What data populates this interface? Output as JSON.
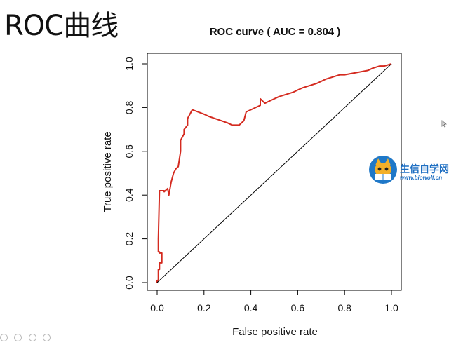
{
  "slide": {
    "title": "ROC曲线"
  },
  "chart_data": {
    "type": "line",
    "title": "ROC curve ( AUC =  0.804 )",
    "xlabel": "False positive rate",
    "ylabel": "True positive rate",
    "xlim": [
      0,
      1
    ],
    "ylim": [
      0,
      1
    ],
    "xticks": [
      "0.0",
      "0.2",
      "0.4",
      "0.6",
      "0.8",
      "1.0"
    ],
    "yticks": [
      "0.0",
      "0.2",
      "0.4",
      "0.6",
      "0.8",
      "1.0"
    ],
    "grid": false,
    "series": [
      {
        "color": "#d42a1f",
        "x": [
          0,
          0,
          0.005,
          0.005,
          0.01,
          0.01,
          0.02,
          0.02,
          0.01,
          0.01,
          0.005,
          0.005,
          0.01,
          0.03,
          0.03,
          0.045,
          0.05,
          0.06,
          0.07,
          0.08,
          0.09,
          0.1,
          0.1,
          0.115,
          0.115,
          0.13,
          0.13,
          0.15,
          0.2,
          0.22,
          0.3,
          0.32,
          0.35,
          0.37,
          0.38,
          0.4,
          0.42,
          0.44,
          0.44,
          0.46,
          0.48,
          0.5,
          0.52,
          0.55,
          0.58,
          0.6,
          0.62,
          0.65,
          0.68,
          0.7,
          0.72,
          0.75,
          0.78,
          0.8,
          0.85,
          0.9,
          0.92,
          0.95,
          0.97,
          1
        ],
        "y": [
          0,
          0.01,
          0.01,
          0.06,
          0.06,
          0.09,
          0.09,
          0.135,
          0.135,
          0.14,
          0.14,
          0.2,
          0.42,
          0.42,
          0.415,
          0.43,
          0.4,
          0.46,
          0.5,
          0.52,
          0.53,
          0.6,
          0.65,
          0.68,
          0.7,
          0.72,
          0.75,
          0.79,
          0.77,
          0.76,
          0.73,
          0.72,
          0.72,
          0.74,
          0.78,
          0.79,
          0.8,
          0.81,
          0.84,
          0.82,
          0.83,
          0.84,
          0.85,
          0.86,
          0.87,
          0.88,
          0.89,
          0.9,
          0.91,
          0.92,
          0.93,
          0.94,
          0.95,
          0.95,
          0.96,
          0.97,
          0.98,
          0.99,
          0.99,
          1
        ]
      },
      {
        "color": "#000000",
        "x": [
          0,
          1
        ],
        "y": [
          0,
          1
        ]
      }
    ]
  },
  "watermark": {
    "name": "生信自学网",
    "url": "www.biowolf.cn"
  }
}
